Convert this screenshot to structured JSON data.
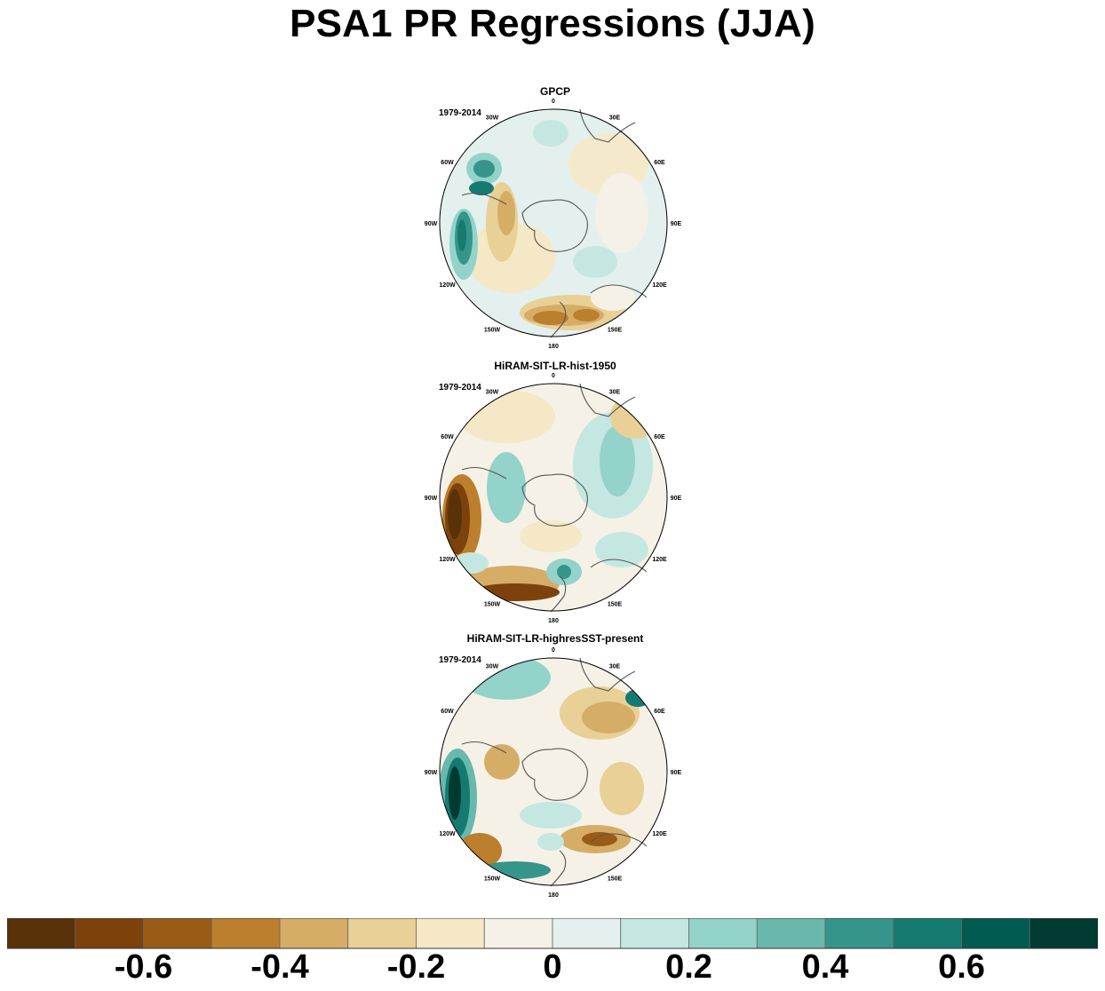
{
  "title": "PSA1 PR Regressions (JJA)",
  "panels": [
    {
      "title": "GPCP",
      "period": "1979-2014"
    },
    {
      "title": "HiRAM-SIT-LR-hist-1950",
      "period": "1979-2014"
    },
    {
      "title": "HiRAM-SIT-LR-highresSST-present",
      "period": "1979-2014"
    }
  ],
  "lon_labels": [
    "0",
    "30E",
    "60E",
    "90E",
    "120E",
    "150E",
    "180",
    "150W",
    "120W",
    "90W",
    "60W",
    "30W"
  ],
  "colorbar": {
    "colors": [
      "#5a320a",
      "#7d420c",
      "#9a5b17",
      "#bb7f2e",
      "#d5ad66",
      "#e8d097",
      "#f5e8c6",
      "#f5f1e6",
      "#e4f0ed",
      "#c5e7e1",
      "#93d3c9",
      "#68b8ad",
      "#35958b",
      "#157a70",
      "#015b50",
      "#013a31"
    ],
    "tick_labels": [
      "-0.6",
      "-0.4",
      "-0.2",
      "0",
      "0.2",
      "0.4",
      "0.6"
    ],
    "tick_values": [
      -0.6,
      -0.4,
      -0.2,
      0,
      0.2,
      0.4,
      0.6
    ],
    "min": -0.8,
    "max": 0.8
  }
}
